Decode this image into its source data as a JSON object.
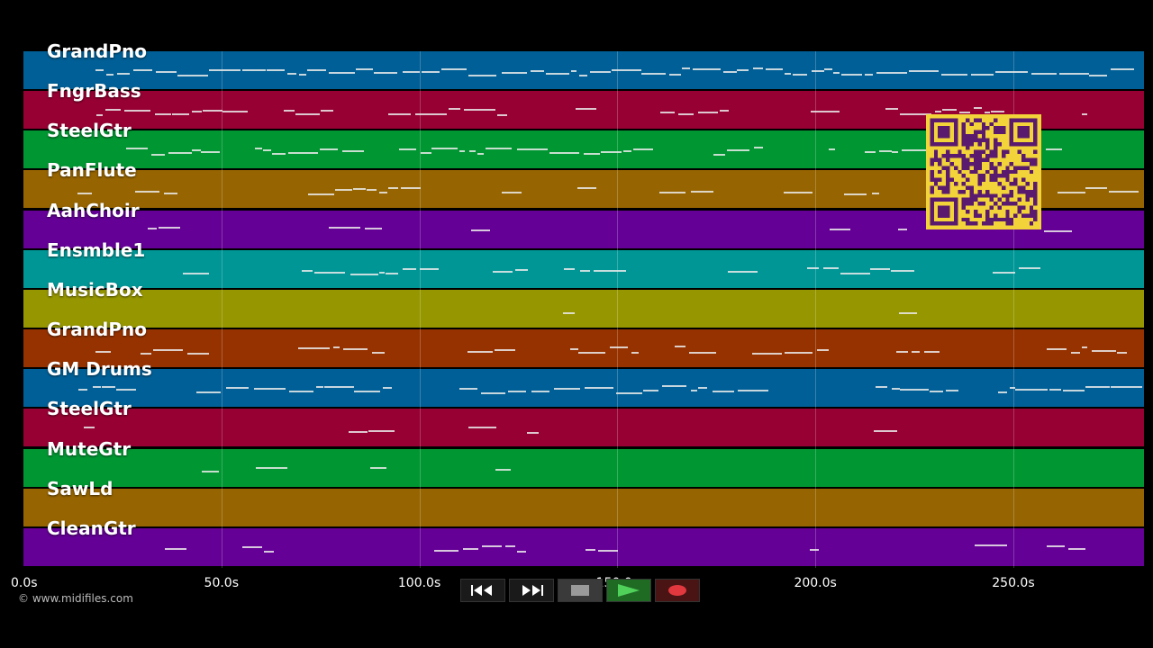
{
  "tracks": [
    {
      "name": "GrandPno",
      "color": "#005f96"
    },
    {
      "name": "FngrBass",
      "color": "#960032"
    },
    {
      "name": "SteelGtr",
      "color": "#009632"
    },
    {
      "name": "PanFlute",
      "color": "#966400"
    },
    {
      "name": "AahChoir",
      "color": "#640096"
    },
    {
      "name": "Ensmble1",
      "color": "#009696"
    },
    {
      "name": "MusicBox",
      "color": "#969600"
    },
    {
      "name": "GrandPno",
      "color": "#963200"
    },
    {
      "name": "GM Drums",
      "color": "#005f96"
    },
    {
      "name": "SteelGtr",
      "color": "#960032"
    },
    {
      "name": "MuteGtr",
      "color": "#009632"
    },
    {
      "name": "SawLd",
      "color": "#966400"
    },
    {
      "name": "CleanGtr",
      "color": "#640096"
    }
  ],
  "time_axis": {
    "labels": [
      "0.0s",
      "50.0s",
      "100.0s",
      "150.0s",
      "200.0s",
      "250.0s"
    ],
    "values": [
      0,
      50,
      100,
      150,
      200,
      250
    ],
    "max": 283
  },
  "copyright": "© www.midifiles.com",
  "controls": [
    {
      "name": "rewind-button",
      "icon": "rewind-icon"
    },
    {
      "name": "fast-forward-button",
      "icon": "fast-forward-icon"
    },
    {
      "name": "stop-button",
      "icon": "stop-icon"
    },
    {
      "name": "play-button",
      "icon": "play-icon"
    },
    {
      "name": "record-button",
      "icon": "record-icon"
    }
  ],
  "qr_code": "qr-code-icon"
}
